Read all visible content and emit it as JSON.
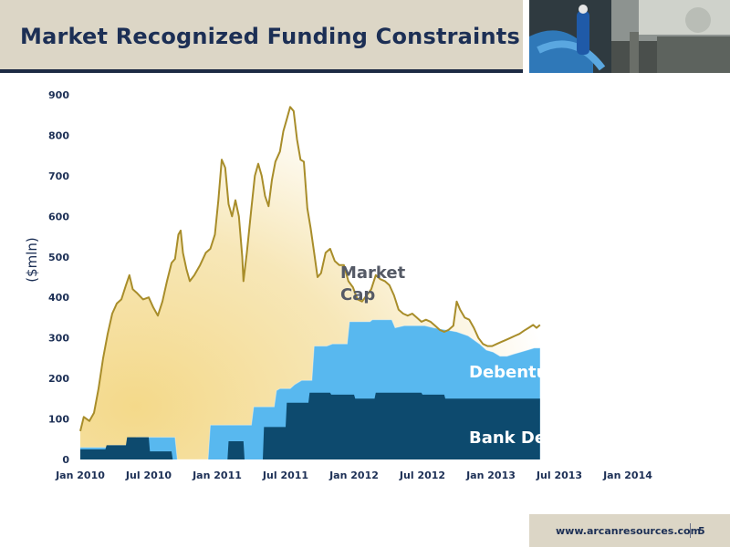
{
  "slide": {
    "title": "Market Recognized Funding Constraints",
    "footer_url": "www.arcanresources.com",
    "page_number": "5"
  },
  "colors": {
    "navy": "#0d4a6e",
    "sky": "#58b8ef",
    "gold_line": "#a88d2a",
    "gold_fill": "#f6e2a2",
    "title": "#1c2f55"
  },
  "chart_data": {
    "type": "area",
    "ylabel": "($mln)",
    "ylim": [
      0,
      900
    ],
    "yticks": [
      "0",
      "100",
      "200",
      "300",
      "400",
      "500",
      "600",
      "700",
      "800",
      "900"
    ],
    "xtick_labels": [
      "Jan 2010",
      "Jul 2010",
      "Jan 2011",
      "Jul 2011",
      "Jan 2012",
      "Jul 2012",
      "Jan 2013",
      "Jul 2013",
      "Jan 2014"
    ],
    "x_range": [
      "Jan 2010",
      "Jul 2014"
    ],
    "annotations": {
      "market_cap": [
        "Market",
        "Cap"
      ],
      "debentures": "Debentures",
      "bank_debt": "Bank Debt"
    },
    "series": [
      {
        "name": "Market Cap",
        "points": [
          [
            0.0,
            70
          ],
          [
            0.3,
            105
          ],
          [
            0.8,
            95
          ],
          [
            1.2,
            115
          ],
          [
            1.6,
            175
          ],
          [
            2.0,
            250
          ],
          [
            2.4,
            310
          ],
          [
            2.8,
            360
          ],
          [
            3.2,
            385
          ],
          [
            3.6,
            395
          ],
          [
            4.0,
            430
          ],
          [
            4.3,
            455
          ],
          [
            4.6,
            420
          ],
          [
            5.0,
            410
          ],
          [
            5.5,
            395
          ],
          [
            6.0,
            400
          ],
          [
            6.4,
            375
          ],
          [
            6.8,
            355
          ],
          [
            7.2,
            390
          ],
          [
            7.6,
            440
          ],
          [
            8.0,
            485
          ],
          [
            8.3,
            495
          ],
          [
            8.6,
            555
          ],
          [
            8.8,
            565
          ],
          [
            9.0,
            510
          ],
          [
            9.3,
            470
          ],
          [
            9.6,
            440
          ],
          [
            10.0,
            455
          ],
          [
            10.5,
            480
          ],
          [
            11.0,
            510
          ],
          [
            11.4,
            520
          ],
          [
            11.8,
            555
          ],
          [
            12.1,
            640
          ],
          [
            12.4,
            740
          ],
          [
            12.7,
            720
          ],
          [
            13.0,
            630
          ],
          [
            13.3,
            600
          ],
          [
            13.6,
            640
          ],
          [
            13.9,
            600
          ],
          [
            14.2,
            500
          ],
          [
            14.3,
            440
          ],
          [
            14.6,
            510
          ],
          [
            15.0,
            620
          ],
          [
            15.3,
            700
          ],
          [
            15.6,
            730
          ],
          [
            15.9,
            700
          ],
          [
            16.2,
            650
          ],
          [
            16.5,
            625
          ],
          [
            16.8,
            690
          ],
          [
            17.1,
            735
          ],
          [
            17.5,
            760
          ],
          [
            17.8,
            810
          ],
          [
            18.1,
            840
          ],
          [
            18.4,
            870
          ],
          [
            18.7,
            860
          ],
          [
            19.0,
            790
          ],
          [
            19.3,
            740
          ],
          [
            19.6,
            735
          ],
          [
            19.9,
            620
          ],
          [
            20.2,
            570
          ],
          [
            20.5,
            510
          ],
          [
            20.8,
            450
          ],
          [
            21.1,
            460
          ],
          [
            21.5,
            510
          ],
          [
            21.9,
            520
          ],
          [
            22.3,
            490
          ],
          [
            22.7,
            480
          ],
          [
            23.1,
            480
          ],
          [
            23.5,
            440
          ],
          [
            23.9,
            425
          ],
          [
            24.3,
            395
          ],
          [
            24.7,
            390
          ],
          [
            25.1,
            405
          ],
          [
            25.5,
            420
          ],
          [
            25.9,
            455
          ],
          [
            26.3,
            445
          ],
          [
            26.7,
            440
          ],
          [
            27.1,
            430
          ],
          [
            27.5,
            405
          ],
          [
            27.9,
            370
          ],
          [
            28.3,
            360
          ],
          [
            28.7,
            355
          ],
          [
            29.1,
            360
          ],
          [
            29.5,
            350
          ],
          [
            29.9,
            340
          ],
          [
            30.3,
            345
          ],
          [
            30.7,
            340
          ],
          [
            31.1,
            330
          ],
          [
            31.5,
            320
          ],
          [
            31.9,
            315
          ],
          [
            32.3,
            320
          ],
          [
            32.7,
            330
          ],
          [
            33.0,
            390
          ],
          [
            33.3,
            370
          ],
          [
            33.7,
            350
          ],
          [
            34.1,
            345
          ],
          [
            34.5,
            325
          ],
          [
            34.9,
            300
          ],
          [
            35.3,
            285
          ],
          [
            35.7,
            280
          ],
          [
            36.1,
            280
          ],
          [
            36.5,
            285
          ],
          [
            36.9,
            290
          ],
          [
            37.3,
            295
          ],
          [
            37.7,
            300
          ],
          [
            38.1,
            305
          ],
          [
            38.5,
            310
          ],
          [
            38.9,
            318
          ],
          [
            39.3,
            325
          ],
          [
            39.7,
            332
          ],
          [
            40.0,
            325
          ],
          [
            40.3,
            332
          ]
        ]
      },
      {
        "name": "Debentures",
        "points": [
          [
            0.0,
            30
          ],
          [
            2.4,
            30
          ],
          [
            2.6,
            35
          ],
          [
            4.7,
            35
          ],
          [
            4.9,
            55
          ],
          [
            8.3,
            55
          ],
          [
            8.5,
            0
          ],
          [
            11.2,
            0
          ],
          [
            11.4,
            85
          ],
          [
            15.0,
            85
          ],
          [
            15.2,
            130
          ],
          [
            17.0,
            130
          ],
          [
            17.2,
            170
          ],
          [
            17.5,
            175
          ],
          [
            18.4,
            175
          ],
          [
            18.8,
            185
          ],
          [
            19.4,
            195
          ],
          [
            20.3,
            195
          ],
          [
            20.5,
            280
          ],
          [
            21.6,
            280
          ],
          [
            22.1,
            285
          ],
          [
            23.4,
            285
          ],
          [
            23.6,
            340
          ],
          [
            25.4,
            340
          ],
          [
            25.6,
            345
          ],
          [
            27.3,
            345
          ],
          [
            27.6,
            325
          ],
          [
            28.4,
            330
          ],
          [
            29.2,
            330
          ],
          [
            30.2,
            330
          ],
          [
            31.0,
            325
          ],
          [
            32.0,
            320
          ],
          [
            33.0,
            315
          ],
          [
            34.0,
            305
          ],
          [
            35.0,
            285
          ],
          [
            35.6,
            270
          ],
          [
            36.2,
            265
          ],
          [
            36.8,
            255
          ],
          [
            37.4,
            255
          ],
          [
            38.0,
            260
          ],
          [
            38.6,
            265
          ],
          [
            39.2,
            270
          ],
          [
            39.8,
            275
          ],
          [
            40.3,
            275
          ]
        ]
      },
      {
        "name": "Bank Debt",
        "points": [
          [
            0.0,
            25
          ],
          [
            2.2,
            25
          ],
          [
            2.3,
            35
          ],
          [
            4.0,
            35
          ],
          [
            4.1,
            55
          ],
          [
            6.0,
            55
          ],
          [
            6.1,
            20
          ],
          [
            8.0,
            20
          ],
          [
            8.1,
            0
          ],
          [
            12.9,
            0
          ],
          [
            13.0,
            45
          ],
          [
            14.3,
            45
          ],
          [
            14.4,
            0
          ],
          [
            16.0,
            0
          ],
          [
            16.1,
            80
          ],
          [
            18.0,
            80
          ],
          [
            18.1,
            140
          ],
          [
            20.0,
            140
          ],
          [
            20.1,
            165
          ],
          [
            21.9,
            165
          ],
          [
            22.0,
            160
          ],
          [
            24.0,
            160
          ],
          [
            24.1,
            150
          ],
          [
            25.8,
            150
          ],
          [
            25.9,
            165
          ],
          [
            29.9,
            165
          ],
          [
            30.0,
            160
          ],
          [
            31.9,
            160
          ],
          [
            32.0,
            150
          ],
          [
            40.3,
            150
          ]
        ]
      }
    ]
  }
}
